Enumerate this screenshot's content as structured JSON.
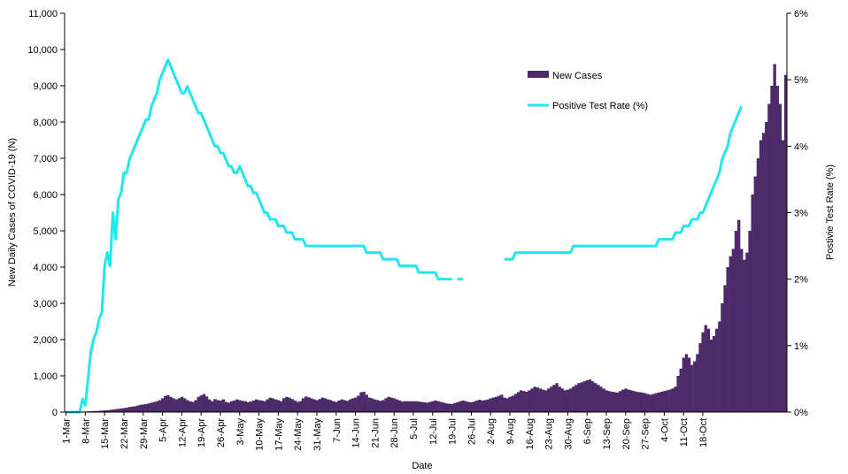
{
  "chart_data": {
    "type": "bar+line",
    "xlabel": "Date",
    "ylabel_left": "New Daily Cases of COVID-19 (N)",
    "ylabel_right": "Postivie Test Rate (%)",
    "ylim_left": [
      0,
      11000
    ],
    "ylim_right": [
      0,
      6
    ],
    "yticks_left": [
      "0",
      "1,000",
      "2,000",
      "3,000",
      "4,000",
      "5,000",
      "6,000",
      "7,000",
      "8,000",
      "9,000",
      "10,000",
      "11,000"
    ],
    "yticks_right": [
      "0%",
      "1%",
      "2%",
      "3%",
      "4%",
      "5%",
      "6%"
    ],
    "xticks": [
      "1-Mar",
      "8-Mar",
      "15-Mar",
      "22-Mar",
      "29-Mar",
      "5-Apr",
      "12-Apr",
      "19-Apr",
      "26-Apr",
      "3-May",
      "10-May",
      "17-May",
      "24-May",
      "31-May",
      "7-Jun",
      "14-Jun",
      "21-Jun",
      "28-Jun",
      "5-Jul",
      "12-Jul",
      "19-Jul",
      "26-Jul",
      "2-Aug",
      "9-Aug",
      "16-Aug",
      "23-Aug",
      "30-Aug",
      "6-Sep",
      "13-Sep",
      "20-Sep",
      "27-Sep",
      "4-Oct",
      "11-Oct",
      "18-Oct"
    ],
    "legend": {
      "position": "top-right",
      "bars": "New Cases",
      "line": "Positive Test Rate (%)"
    },
    "colors": {
      "bars": "#4e2a6b",
      "line": "#22e5ee"
    },
    "grid": false,
    "series": [
      {
        "name": "New Cases",
        "kind": "bar",
        "axis": "left",
        "x_start": "1-Mar",
        "step": "1 day",
        "values": [
          0,
          0,
          0,
          0,
          5,
          8,
          10,
          15,
          20,
          25,
          30,
          30,
          35,
          40,
          50,
          50,
          60,
          70,
          80,
          90,
          100,
          110,
          120,
          140,
          150,
          160,
          180,
          200,
          210,
          220,
          240,
          260,
          280,
          300,
          330,
          380,
          440,
          470,
          420,
          380,
          350,
          380,
          420,
          380,
          330,
          300,
          280,
          330,
          420,
          460,
          500,
          430,
          350,
          300,
          360,
          330,
          320,
          350,
          280,
          260,
          300,
          320,
          350,
          330,
          310,
          300,
          270,
          290,
          320,
          350,
          330,
          320,
          300,
          350,
          400,
          380,
          350,
          330,
          300,
          380,
          420,
          400,
          360,
          320,
          280,
          300,
          380,
          430,
          410,
          380,
          350,
          330,
          360,
          400,
          380,
          350,
          330,
          300,
          280,
          320,
          350,
          330,
          310,
          350,
          380,
          400,
          450,
          550,
          560,
          480,
          400,
          380,
          350,
          330,
          310,
          330,
          380,
          420,
          400,
          380,
          350,
          320,
          290,
          300,
          300,
          300,
          300,
          300,
          290,
          280,
          270,
          260,
          280,
          300,
          320,
          300,
          280,
          260,
          240,
          230,
          220,
          250,
          270,
          300,
          320,
          300,
          280,
          270,
          290,
          320,
          340,
          320,
          330,
          350,
          380,
          400,
          420,
          450,
          480,
          400,
          380,
          420,
          450,
          500,
          550,
          600,
          580,
          560,
          600,
          650,
          700,
          680,
          650,
          620,
          600,
          650,
          700,
          750,
          800,
          700,
          650,
          600,
          620,
          650,
          700,
          750,
          800,
          820,
          850,
          880,
          900,
          850,
          800,
          750,
          700,
          650,
          600,
          580,
          560,
          550,
          540,
          580,
          620,
          650,
          620,
          600,
          580,
          560,
          550,
          540,
          520,
          500,
          480,
          500,
          520,
          540,
          560,
          580,
          600,
          620,
          650,
          700,
          1000,
          1200,
          1500,
          1600,
          1500,
          1300,
          1400,
          1600,
          1900,
          2200,
          2400,
          2300,
          2000,
          2100,
          2300,
          2500,
          3000,
          3500,
          4000,
          4300,
          4500,
          5000,
          5300,
          4500,
          4200,
          4400,
          5000,
          6000,
          6500,
          7000,
          7500,
          7700,
          8000,
          8500,
          9000,
          9600,
          9000,
          8500,
          7500,
          9300
        ]
      },
      {
        "name": "Positive Test Rate (%)",
        "kind": "line",
        "axis": "right",
        "x_start": "1-Mar",
        "step": "1 day",
        "values": [
          0,
          0,
          0,
          0,
          0,
          0,
          0.2,
          0.1,
          0.5,
          0.9,
          1.1,
          1.2,
          1.4,
          1.5,
          2.2,
          2.4,
          2.2,
          3.0,
          2.6,
          3.2,
          3.3,
          3.6,
          3.6,
          3.8,
          3.9,
          4.0,
          4.1,
          4.2,
          4.3,
          4.4,
          4.4,
          4.6,
          4.7,
          4.8,
          5.0,
          5.1,
          5.2,
          5.3,
          5.2,
          5.1,
          5.0,
          4.9,
          4.8,
          4.8,
          4.9,
          4.8,
          4.7,
          4.6,
          4.5,
          4.5,
          4.4,
          4.3,
          4.2,
          4.1,
          4.0,
          4.0,
          3.9,
          3.9,
          3.8,
          3.7,
          3.7,
          3.6,
          3.6,
          3.7,
          3.6,
          3.5,
          3.4,
          3.4,
          3.3,
          3.3,
          3.2,
          3.1,
          3.0,
          3.0,
          2.9,
          2.9,
          2.9,
          2.8,
          2.8,
          2.8,
          2.7,
          2.7,
          2.7,
          2.6,
          2.6,
          2.6,
          2.6,
          2.5,
          2.5,
          2.5,
          2.5,
          2.5,
          2.5,
          2.5,
          2.5,
          2.5,
          2.5,
          2.5,
          2.5,
          2.5,
          2.5,
          2.5,
          2.5,
          2.5,
          2.5,
          2.5,
          2.5,
          2.5,
          2.5,
          2.4,
          2.4,
          2.4,
          2.4,
          2.4,
          2.4,
          2.3,
          2.3,
          2.3,
          2.3,
          2.3,
          2.3,
          2.2,
          2.2,
          2.2,
          2.2,
          2.2,
          2.2,
          2.2,
          2.1,
          2.1,
          2.1,
          2.1,
          2.1,
          2.1,
          2.1,
          2.0,
          2.0,
          2.0,
          2.0,
          2.0,
          2.0,
          null,
          2.0,
          2.0,
          2.0,
          null,
          null,
          null,
          null,
          null,
          null,
          null,
          null,
          null,
          null,
          null,
          null,
          null,
          null,
          2.3,
          2.3,
          2.3,
          2.3,
          2.4,
          2.4,
          2.4,
          2.4,
          2.4,
          2.4,
          2.4,
          2.4,
          2.4,
          2.4,
          2.4,
          2.4,
          2.4,
          2.4,
          2.4,
          2.4,
          2.4,
          2.4,
          2.4,
          2.4,
          2.4,
          2.5,
          2.5,
          2.5,
          2.5,
          2.5,
          2.5,
          2.5,
          2.5,
          2.5,
          2.5,
          2.5,
          2.5,
          2.5,
          2.5,
          2.5,
          2.5,
          2.5,
          2.5,
          2.5,
          2.5,
          2.5,
          2.5,
          2.5,
          2.5,
          2.5,
          2.5,
          2.5,
          2.5,
          2.5,
          2.5,
          2.5,
          2.6,
          2.6,
          2.6,
          2.6,
          2.6,
          2.6,
          2.7,
          2.7,
          2.7,
          2.8,
          2.8,
          2.8,
          2.9,
          2.9,
          2.9,
          3.0,
          3.0,
          3.1,
          3.2,
          3.3,
          3.4,
          3.5,
          3.6,
          3.8,
          3.9,
          4.0,
          4.2,
          4.3,
          4.4,
          4.5,
          4.6
        ]
      }
    ]
  }
}
